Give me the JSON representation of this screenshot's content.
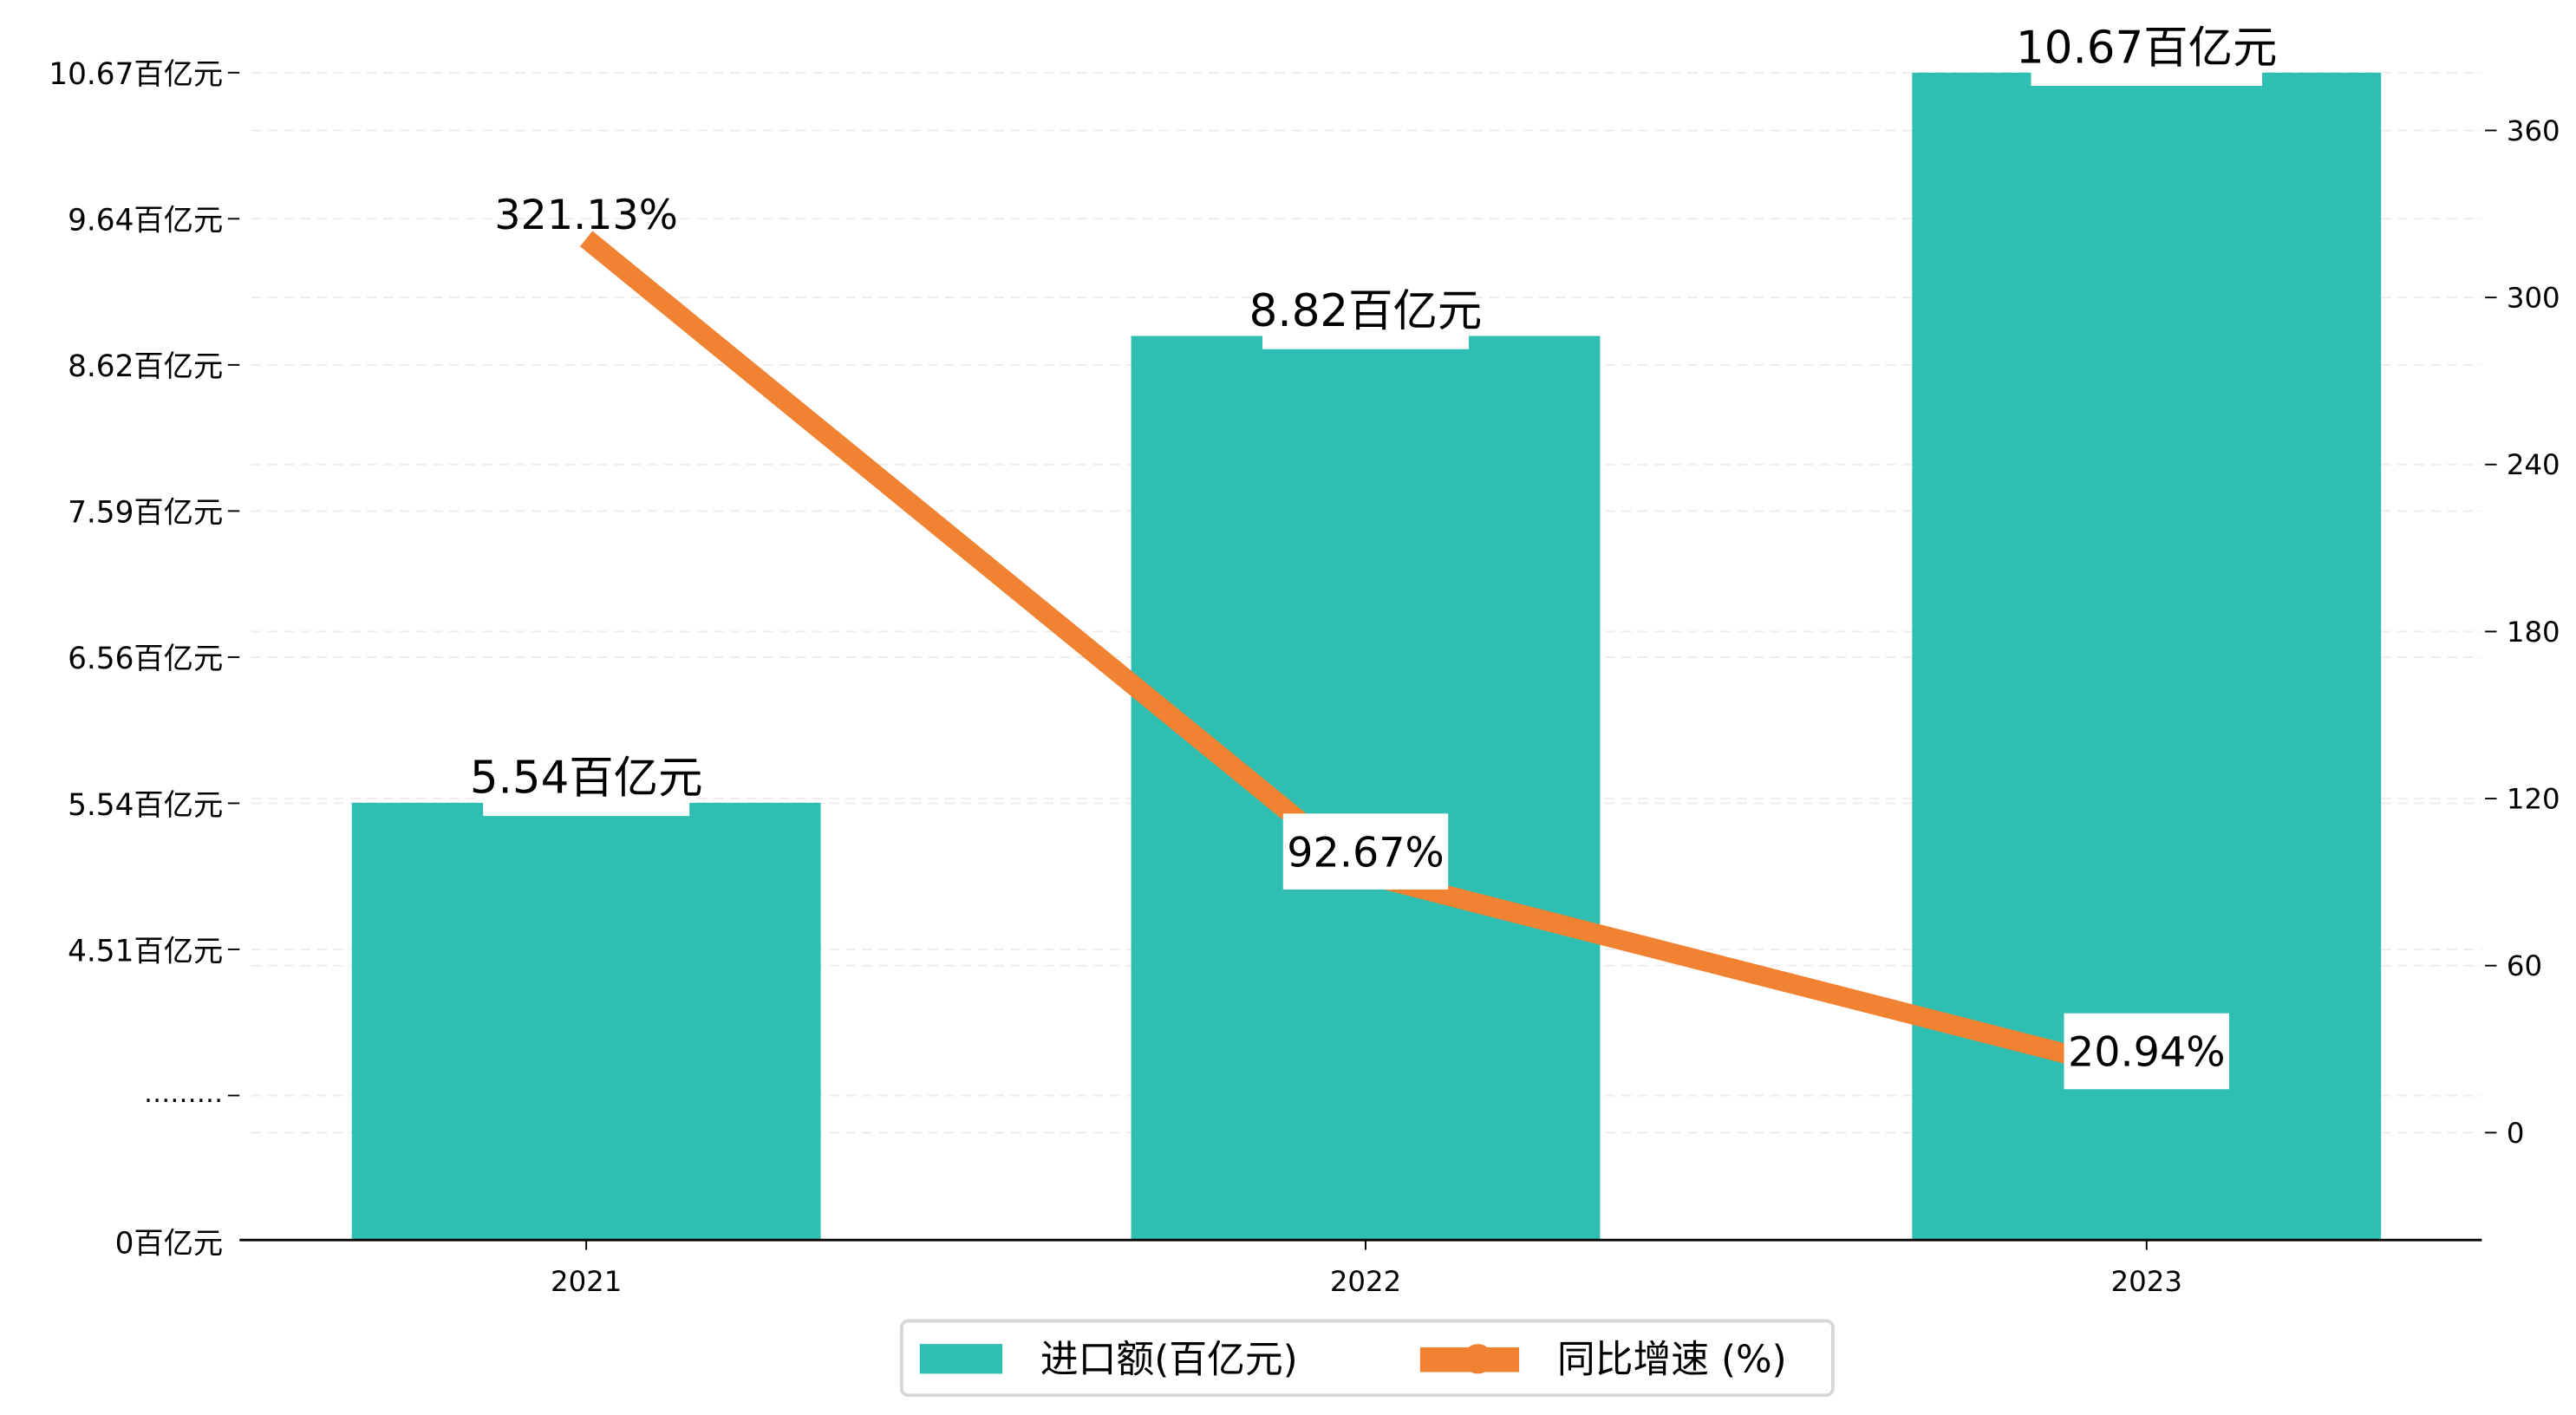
{
  "chart_data": {
    "type": "bar+line",
    "categories": [
      "2021",
      "2022",
      "2023"
    ],
    "series": [
      {
        "name": "进口额(百亿元)",
        "type": "bar",
        "axis": "left",
        "values": [
          5.54,
          8.82,
          10.67
        ],
        "labels": [
          "5.54百亿元",
          "8.82百亿元",
          "10.67百亿元"
        ],
        "color": "#2ebfb2"
      },
      {
        "name": "同比增速 (%)",
        "type": "line",
        "axis": "right",
        "values": [
          321.13,
          92.67,
          20.94
        ],
        "labels": [
          "321.13%",
          "92.67%",
          "20.94%"
        ],
        "color": "#f08231"
      }
    ],
    "left_axis": {
      "type": "broken",
      "tick_values": [
        10.67,
        9.64,
        8.62,
        7.59,
        6.56,
        5.54,
        4.51
      ],
      "tick_labels": [
        "10.67百亿元",
        "9.64百亿元",
        "8.62百亿元",
        "7.59百亿元",
        "6.56百亿元",
        "5.54百亿元",
        "4.51百亿元"
      ],
      "break_label": "………",
      "zero_label": "0百亿元"
    },
    "right_axis": {
      "ticks": [
        0,
        60,
        120,
        180,
        240,
        300,
        360
      ],
      "tick_labels": [
        "0",
        "60",
        "120",
        "180",
        "240",
        "300",
        "360"
      ]
    },
    "grid": true,
    "legend": {
      "placement": "bottom-center",
      "items": [
        "进口额(百亿元)",
        "同比增速 (%)"
      ]
    }
  }
}
